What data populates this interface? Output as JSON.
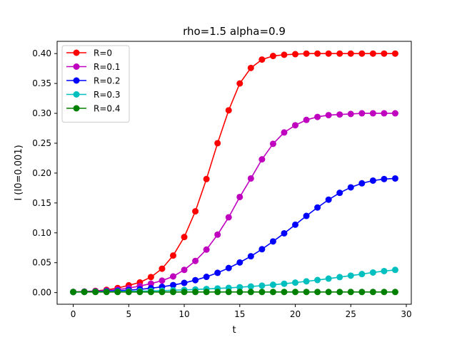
{
  "chart_data": {
    "type": "line",
    "title": "rho=1.5 alpha=0.9",
    "xlabel": "t",
    "ylabel": "I (I0=0.001)",
    "xlim": [
      -1.45,
      30.45
    ],
    "ylim": [
      -0.0195,
      0.4205
    ],
    "xticks": [
      0,
      5,
      10,
      15,
      20,
      25,
      30
    ],
    "xtick_labels": [
      "0",
      "5",
      "10",
      "15",
      "20",
      "25",
      "30"
    ],
    "yticks": [
      0.0,
      0.05,
      0.1,
      0.15,
      0.2,
      0.25,
      0.3,
      0.35,
      0.4
    ],
    "ytick_labels": [
      "0.00",
      "0.05",
      "0.10",
      "0.15",
      "0.20",
      "0.25",
      "0.30",
      "0.35",
      "0.40"
    ],
    "grid": false,
    "legend_position": "top-left",
    "x": [
      0,
      1,
      2,
      3,
      4,
      5,
      6,
      7,
      8,
      9,
      10,
      11,
      12,
      13,
      14,
      15,
      16,
      17,
      18,
      19,
      20,
      21,
      22,
      23,
      24,
      25,
      26,
      27,
      28,
      29
    ],
    "series": [
      {
        "name": "R=0",
        "color": "#ff0000",
        "values": [
          0.001,
          0.0017,
          0.0028,
          0.0046,
          0.0076,
          0.0122,
          0.017,
          0.026,
          0.04,
          0.062,
          0.093,
          0.136,
          0.19,
          0.25,
          0.305,
          0.35,
          0.376,
          0.39,
          0.396,
          0.398,
          0.399,
          0.4,
          0.4,
          0.4,
          0.4,
          0.4,
          0.4,
          0.4,
          0.4,
          0.4
        ]
      },
      {
        "name": "R=0.1",
        "color": "#bf00bf",
        "values": [
          0.001,
          0.0015,
          0.0022,
          0.0033,
          0.005,
          0.0075,
          0.011,
          0.015,
          0.02,
          0.027,
          0.038,
          0.053,
          0.072,
          0.097,
          0.126,
          0.16,
          0.191,
          0.223,
          0.249,
          0.268,
          0.28,
          0.289,
          0.294,
          0.297,
          0.298,
          0.299,
          0.3,
          0.3,
          0.3,
          0.3
        ]
      },
      {
        "name": "R=0.2",
        "color": "#0000ff",
        "values": [
          0.001,
          0.0013,
          0.0017,
          0.0023,
          0.0031,
          0.0041,
          0.0055,
          0.0073,
          0.0097,
          0.0126,
          0.0162,
          0.0208,
          0.0264,
          0.0331,
          0.0411,
          0.0504,
          0.0608,
          0.0726,
          0.0856,
          0.0992,
          0.1136,
          0.1283,
          0.1424,
          0.1555,
          0.1669,
          0.1761,
          0.1829,
          0.1874,
          0.19,
          0.191
        ]
      },
      {
        "name": "R=0.3",
        "color": "#00bfbf",
        "values": [
          0.001,
          0.0011,
          0.0013,
          0.0015,
          0.0017,
          0.002,
          0.0024,
          0.0028,
          0.0033,
          0.0039,
          0.0045,
          0.0052,
          0.006,
          0.0069,
          0.0079,
          0.009,
          0.0102,
          0.0116,
          0.0131,
          0.0148,
          0.0167,
          0.0188,
          0.021,
          0.0234,
          0.0259,
          0.0284,
          0.031,
          0.0336,
          0.036,
          0.038
        ]
      },
      {
        "name": "R=0.4",
        "color": "#008000",
        "values": [
          0.001,
          0.001,
          0.001,
          0.001,
          0.001,
          0.001,
          0.001,
          0.001,
          0.001,
          0.001,
          0.001,
          0.001,
          0.001,
          0.001,
          0.001,
          0.001,
          0.001,
          0.001,
          0.001,
          0.001,
          0.001,
          0.001,
          0.001,
          0.001,
          0.001,
          0.001,
          0.001,
          0.001,
          0.001,
          0.001
        ]
      }
    ]
  }
}
